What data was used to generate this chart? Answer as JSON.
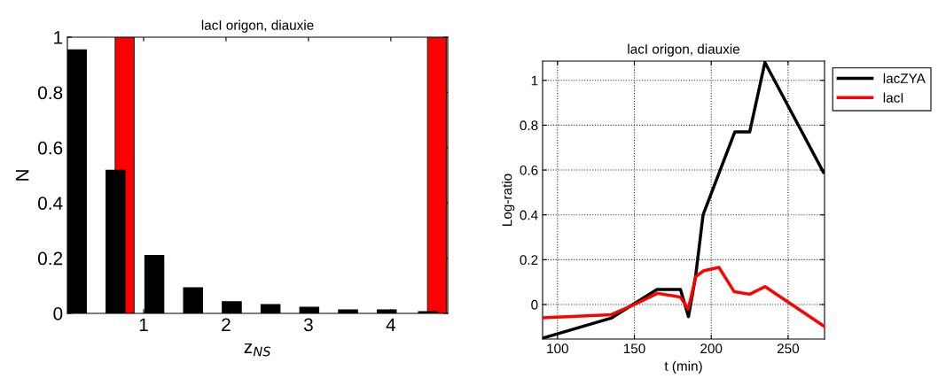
{
  "chart_data": [
    {
      "type": "bar",
      "title": "lacI origon, diauxie",
      "xlabel": "z$_{NS}$",
      "ylabel": "N",
      "xlim": [
        0.075,
        4.69
      ],
      "xticks": [
        1,
        2,
        3,
        4
      ],
      "ylim": [
        0,
        1
      ],
      "yticks": [
        0,
        0.2,
        0.4,
        0.6,
        0.8,
        1
      ],
      "grid": false,
      "legend": false,
      "series": [
        {
          "color": "#000000",
          "x": [
            0.19,
            0.66,
            1.13,
            1.6,
            2.07,
            2.54,
            3.01,
            3.48,
            3.95,
            4.45
          ],
          "values": [
            0.954,
            0.518,
            0.21,
            0.093,
            0.042,
            0.032,
            0.022,
            0.013,
            0.013,
            0.006
          ]
        },
        {
          "color": "#ff0000",
          "x": [
            0.77,
            4.56
          ],
          "values": [
            1,
            1
          ]
        }
      ]
    },
    {
      "type": "line",
      "title": "lacI origon, diauxie",
      "xlabel": "t (min)",
      "ylabel": "Log-ratio",
      "xlim": [
        90.3,
        273.7
      ],
      "xticks": [
        100,
        150,
        200,
        250
      ],
      "ylim": [
        -0.154,
        1.086
      ],
      "yticks": [
        0,
        0.2,
        0.4,
        0.6,
        0.8,
        1
      ],
      "grid": true,
      "legend": "top right",
      "line_style": "solid",
      "series": [
        {
          "name": "lacZYA",
          "color": "#000000",
          "x": [
            90.3,
            134.8,
            164.7,
            180,
            185.2,
            189.8,
            194.7,
            215.3,
            225,
            234.9,
            273
          ],
          "values": [
            -0.15,
            -0.061,
            0.067,
            0.067,
            -0.054,
            0.125,
            0.4,
            0.77,
            0.77,
            1.08,
            0.59
          ]
        },
        {
          "name": "lacI",
          "color": "#ff0000",
          "x": [
            90.3,
            135,
            150,
            165,
            180,
            185,
            190,
            195,
            205,
            215,
            225,
            235,
            273
          ],
          "values": [
            -0.059,
            -0.045,
            0,
            0.05,
            0.033,
            -0.02,
            0.125,
            0.15,
            0.166,
            0.057,
            0.046,
            0.08,
            -0.095
          ]
        }
      ]
    }
  ]
}
